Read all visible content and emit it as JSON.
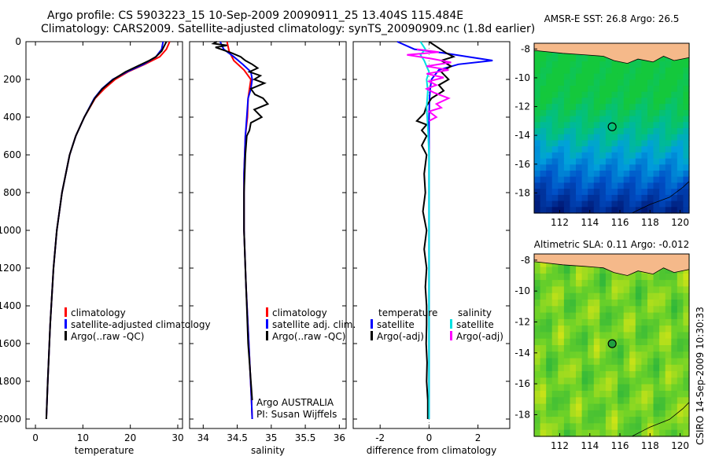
{
  "header": {
    "line1": "Argo profile: CS 5903223_15 10-Sep-2009 20090911_25 13.404S 115.484E",
    "line2": "Climatology: CARS2009. Satellite-adjusted climatology: synTS_20090909.nc (1.8d earlier)"
  },
  "footer_text": "CSIRO 14-Sep-2009 10:30:33",
  "colors": {
    "climatology": "#ff0000",
    "satellite": "#0000ff",
    "argo": "#000000",
    "sal_satellite": "#00e0e0",
    "sal_argo": "#ff00ff",
    "land": "#f5b98a"
  },
  "chart_data": [
    {
      "type": "line",
      "id": "temperature",
      "xlabel": "temperature",
      "ylabel": "",
      "xlim": [
        -2,
        31
      ],
      "ylim": [
        2050,
        0
      ],
      "xticks": [
        0,
        10,
        20,
        30
      ],
      "yticks": [
        0,
        200,
        400,
        600,
        800,
        1000,
        1200,
        1400,
        1600,
        1800,
        2000
      ],
      "legend": [
        "climatology",
        "satellite-adjusted climatology",
        "Argo(..raw -QC)"
      ],
      "series": [
        {
          "name": "climatology",
          "color": "#ff0000",
          "depth": [
            0,
            40,
            80,
            120,
            160,
            200,
            250,
            300,
            400,
            500,
            600,
            800,
            1000,
            1200,
            1500,
            1800,
            2000
          ],
          "values": [
            28.3,
            27.6,
            26.2,
            23.0,
            19.5,
            16.8,
            14.5,
            12.6,
            10.3,
            8.5,
            7.2,
            5.6,
            4.5,
            3.8,
            3.1,
            2.6,
            2.3
          ]
        },
        {
          "name": "satellite-adjusted climatology",
          "color": "#0000ff",
          "depth": [
            0,
            40,
            80,
            120,
            160,
            200,
            250,
            300,
            400,
            500,
            600,
            800,
            1000,
            1200,
            1500,
            1800,
            2000
          ],
          "values": [
            26.9,
            26.6,
            25.4,
            22.8,
            19.3,
            16.3,
            14.0,
            12.4,
            10.3,
            8.5,
            7.2,
            5.6,
            4.5,
            3.8,
            3.1,
            2.6,
            2.3
          ]
        },
        {
          "name": "Argo(..raw -QC)",
          "color": "#000000",
          "depth": [
            0,
            20,
            50,
            80,
            100,
            130,
            160,
            200,
            250,
            300,
            400,
            500,
            600,
            800,
            1000,
            1200,
            1500,
            1800,
            2000
          ],
          "values": [
            27.6,
            27.2,
            26.6,
            25.4,
            24.0,
            21.5,
            19.0,
            16.4,
            14.1,
            12.5,
            10.3,
            8.5,
            7.2,
            5.6,
            4.5,
            3.8,
            3.1,
            2.6,
            2.3
          ]
        }
      ]
    },
    {
      "type": "line",
      "id": "salinity",
      "xlabel": "salinity",
      "xlim": [
        33.8,
        36.1
      ],
      "ylim": [
        2050,
        0
      ],
      "xticks": [
        34,
        34.5,
        35,
        35.5,
        36
      ],
      "legend": [
        "climatology",
        "satellite adj. clim.",
        "Argo(..raw -QC)"
      ],
      "annotation": [
        "Argo AUSTRALIA",
        "PI: Susan Wijffels"
      ],
      "series": [
        {
          "name": "climatology",
          "color": "#ff0000",
          "depth": [
            0,
            50,
            100,
            150,
            200,
            300,
            400,
            500,
            700,
            1000,
            1300,
            1600,
            1900,
            2000
          ],
          "values": [
            34.35,
            34.38,
            34.45,
            34.6,
            34.7,
            34.66,
            34.65,
            34.62,
            34.6,
            34.6,
            34.63,
            34.67,
            34.71,
            34.72
          ]
        },
        {
          "name": "satellite adj. clim.",
          "color": "#0000ff",
          "depth": [
            0,
            40,
            80,
            120,
            160,
            200,
            250,
            300,
            400,
            500,
            700,
            1000,
            1300,
            1600,
            1900,
            2000
          ],
          "values": [
            34.25,
            34.3,
            34.45,
            34.58,
            34.7,
            34.72,
            34.7,
            34.66,
            34.64,
            34.62,
            34.6,
            34.6,
            34.63,
            34.67,
            34.71,
            34.72
          ]
        },
        {
          "name": "Argo(..raw -QC)",
          "color": "#000000",
          "depth": [
            0,
            10,
            20,
            30,
            45,
            60,
            80,
            100,
            120,
            140,
            160,
            180,
            200,
            220,
            250,
            280,
            300,
            330,
            360,
            400,
            430,
            470,
            500,
            600,
            800,
            1000,
            1200,
            1400,
            1600,
            1800,
            1900
          ],
          "values": [
            34.2,
            34.15,
            34.35,
            34.18,
            34.3,
            34.42,
            34.55,
            34.62,
            34.72,
            34.8,
            34.68,
            34.84,
            34.75,
            34.9,
            34.7,
            34.76,
            34.88,
            34.95,
            34.75,
            34.86,
            34.7,
            34.68,
            34.64,
            34.62,
            34.6,
            34.6,
            34.62,
            34.64,
            34.66,
            34.7,
            34.72
          ]
        }
      ]
    },
    {
      "type": "line",
      "id": "difference",
      "xlabel": "difference from climatology",
      "xlim": [
        -3.1,
        3.3
      ],
      "ylim": [
        2050,
        0
      ],
      "xticks": [
        -2,
        0,
        2
      ],
      "legend": {
        "temperature": [
          "satellite",
          "Argo(-adj)"
        ],
        "salinity": [
          "satellite",
          "Argo(-adj)"
        ]
      },
      "legend_headers": [
        "temperature",
        "salinity"
      ],
      "series": [
        {
          "name": "temperature satellite",
          "color": "#0000ff",
          "depth": [
            0,
            40,
            60,
            80,
            100,
            120,
            150,
            200,
            250,
            300,
            400,
            600,
            1000,
            1500,
            2000
          ],
          "values": [
            -1.3,
            -0.6,
            0.6,
            1.6,
            2.6,
            1.2,
            0.4,
            0.1,
            0.05,
            0.02,
            0.0,
            0.0,
            0.0,
            0.0,
            0.0
          ]
        },
        {
          "name": "temperature Argo(-adj)",
          "color": "#000000",
          "depth": [
            0,
            60,
            80,
            100,
            130,
            160,
            200,
            230,
            260,
            300,
            340,
            380,
            420,
            440,
            470,
            500,
            550,
            600,
            700,
            800,
            900,
            1000,
            1100,
            1200,
            1300,
            1400,
            1500,
            1600,
            1700,
            1800,
            1900,
            2000
          ],
          "values": [
            0.0,
            0.7,
            1.0,
            0.5,
            0.9,
            0.5,
            0.8,
            0.4,
            0.6,
            0.1,
            -0.1,
            -0.2,
            -0.5,
            -0.1,
            -0.3,
            -0.1,
            -0.3,
            -0.1,
            -0.2,
            -0.15,
            -0.25,
            -0.1,
            -0.2,
            -0.1,
            -0.15,
            -0.1,
            -0.1,
            -0.12,
            -0.08,
            -0.1,
            -0.05,
            -0.05
          ]
        },
        {
          "name": "salinity satellite",
          "color": "#00e0e0",
          "depth": [
            0,
            40,
            70,
            100,
            130,
            160,
            200,
            260,
            350,
            450,
            600,
            1000,
            1500,
            2000
          ],
          "values": [
            -0.35,
            -0.15,
            -0.35,
            -0.2,
            -0.1,
            0.0,
            -0.1,
            -0.05,
            -0.1,
            -0.05,
            0.0,
            0.0,
            0.0,
            0.0
          ]
        },
        {
          "name": "salinity Argo(-adj)",
          "color": "#ff00ff",
          "depth": [
            40,
            55,
            70,
            90,
            110,
            130,
            150,
            170,
            190,
            210,
            230,
            250,
            270,
            300,
            330,
            350,
            370,
            400,
            420
          ],
          "values": [
            -0.5,
            0.4,
            -0.9,
            0.1,
            0.9,
            -0.1,
            0.8,
            -0.1,
            0.6,
            0.0,
            0.3,
            -0.1,
            0.2,
            0.8,
            0.3,
            0.5,
            0.0,
            0.3,
            0.0
          ]
        }
      ]
    },
    {
      "type": "heatmap",
      "id": "sst-map",
      "title": "AMSR-E SST: 26.8 Argo: 26.5",
      "xlim": [
        110.3,
        120.6
      ],
      "ylim": [
        -19.4,
        -7.6
      ],
      "xticks": [
        112,
        114,
        116,
        118,
        120
      ],
      "yticks": [
        -8,
        -10,
        -12,
        -14,
        -16,
        -18
      ],
      "argo_position": {
        "lon": 115.484,
        "lat": -13.404
      }
    },
    {
      "type": "heatmap",
      "id": "sla-map",
      "title": "Altimetric SLA: 0.11 Argo: -0.012",
      "xlim": [
        110.3,
        120.6
      ],
      "ylim": [
        -19.4,
        -7.6
      ],
      "xticks": [
        112,
        114,
        116,
        118,
        120
      ],
      "yticks": [
        -8,
        -10,
        -12,
        -14,
        -16,
        -18
      ],
      "argo_position": {
        "lon": 115.484,
        "lat": -13.404
      }
    }
  ]
}
